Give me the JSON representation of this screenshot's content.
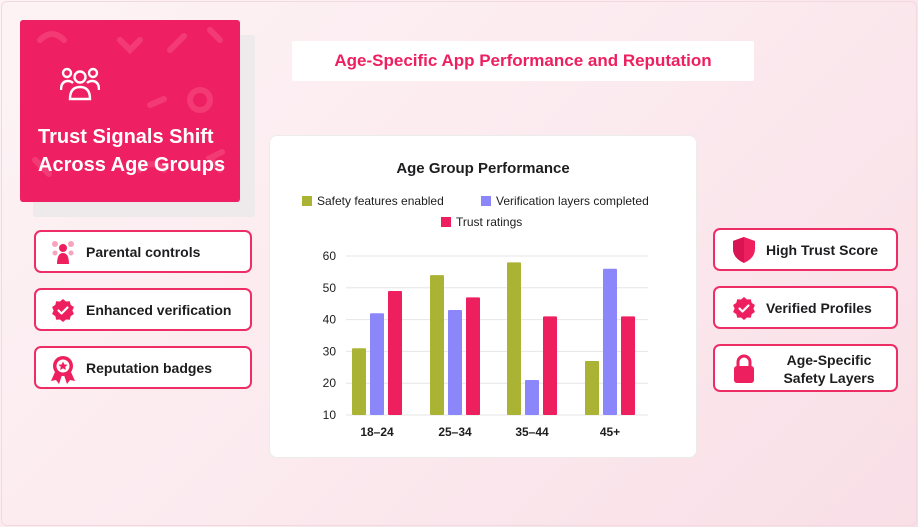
{
  "hero": {
    "title": "Trust Signals Shift Across Age Groups",
    "icon": "people-group-icon"
  },
  "page_title": "Age-Specific App Performance and Reputation",
  "left_features": [
    {
      "label": "Parental controls",
      "icon": "family-icon"
    },
    {
      "label": "Enhanced verification",
      "icon": "verified-badge-icon"
    },
    {
      "label": "Reputation badges",
      "icon": "ribbon-badge-icon"
    }
  ],
  "right_features": [
    {
      "label": "High Trust Score",
      "icon": "shield-icon"
    },
    {
      "label": "Verified Profiles",
      "icon": "verified-badge-icon"
    },
    {
      "label": "Age-Specific Safety Layers",
      "icon": "lock-icon"
    }
  ],
  "colors": {
    "accent": "#ee1f5f",
    "safety": "#aab334",
    "verification": "#8b87fb",
    "trust": "#ee1f5f"
  },
  "chart_data": {
    "type": "bar",
    "title": "Age Group Performance",
    "categories": [
      "18–24",
      "25–34",
      "35–44",
      "45+"
    ],
    "series": [
      {
        "name": "Safety features enabled",
        "color": "#aab334",
        "values": [
          31,
          54,
          58,
          27
        ]
      },
      {
        "name": "Verification layers completed",
        "color": "#8b87fb",
        "values": [
          42,
          43,
          21,
          56
        ]
      },
      {
        "name": "Trust ratings",
        "color": "#ee1f5f",
        "values": [
          49,
          47,
          41,
          41
        ]
      }
    ],
    "yticks": [
      10,
      20,
      30,
      40,
      50,
      60
    ],
    "ylim": [
      10,
      60
    ],
    "grid": true,
    "legend": "top"
  }
}
